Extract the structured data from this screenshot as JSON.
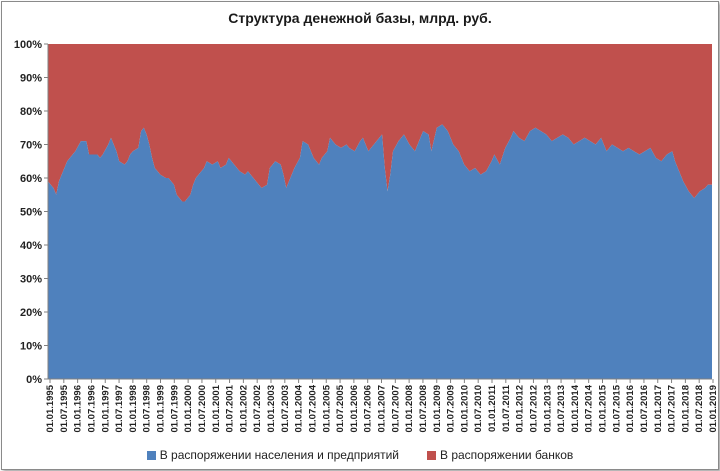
{
  "chart_data": {
    "type": "area",
    "stacked": "percent",
    "title": "Структура денежной базы, млрд. руб.",
    "xlabel": "",
    "ylabel": "",
    "ylim": [
      0,
      100
    ],
    "y_ticks": [
      "0%",
      "10%",
      "20%",
      "30%",
      "40%",
      "50%",
      "60%",
      "70%",
      "80%",
      "90%",
      "100%"
    ],
    "x_ticks": [
      "01.01.1995",
      "01.07.1995",
      "01.01.1996",
      "01.07.1996",
      "01.01.1997",
      "01.07.1997",
      "01.01.1998",
      "01.07.1998",
      "01.01.1999",
      "01.07.1999",
      "01.01.2000",
      "01.07.2000",
      "01.01.2001",
      "01.07.2001",
      "01.01.2002",
      "01.07.2002",
      "01.01.2003",
      "01.07.2003",
      "01.01.2004",
      "01.07.2004",
      "01.01.2005",
      "01.07.2005",
      "01.01.2006",
      "01.07.2006",
      "01.01.2007",
      "01.07.2007",
      "01.01.2008",
      "01.07.2008",
      "01.01.2009",
      "01.07.2009",
      "01.01.2010",
      "01.07.2010",
      "01.01.2011",
      "01.07.2011",
      "01.01.2012",
      "01.07.2012",
      "01.01.2013",
      "01.07.2013",
      "01.01.2014",
      "01.07.2014",
      "01.01.2015",
      "01.07.2015",
      "01.01.2016",
      "01.07.2016",
      "01.01.2017",
      "01.07.2017",
      "01.01.2018",
      "01.07.2018",
      "01.01.2019"
    ],
    "legend_position": "bottom",
    "grid": false,
    "x": [
      1995.0,
      1995.1,
      1995.2,
      1995.3,
      1995.4,
      1995.5,
      1995.6,
      1995.7,
      1995.8,
      1995.9,
      1996.0,
      1996.2,
      1996.4,
      1996.5,
      1996.6,
      1996.7,
      1996.8,
      1996.9,
      1997.0,
      1997.2,
      1997.3,
      1997.5,
      1997.6,
      1997.8,
      1997.9,
      1998.0,
      1998.1,
      1998.3,
      1998.4,
      1998.5,
      1998.6,
      1998.7,
      1998.8,
      1998.9,
      1999.0,
      1999.1,
      1999.3,
      1999.4,
      1999.6,
      1999.7,
      1999.8,
      1999.9,
      2000.0,
      2000.1,
      2000.2,
      2000.3,
      2000.4,
      2000.5,
      2000.7,
      2000.8,
      2001.0,
      2001.2,
      2001.3,
      2001.5,
      2001.6,
      2001.8,
      2002.0,
      2002.2,
      2002.3,
      2002.5,
      2002.7,
      2002.8,
      2003.0,
      2003.1,
      2003.3,
      2003.5,
      2003.6,
      2003.7,
      2003.8,
      2004.0,
      2004.2,
      2004.3,
      2004.5,
      2004.7,
      2004.9,
      2005.0,
      2005.2,
      2005.3,
      2005.5,
      2005.7,
      2005.9,
      2006.0,
      2006.2,
      2006.4,
      2006.5,
      2006.7,
      2006.9,
      2007.0,
      2007.2,
      2007.3,
      2007.4,
      2007.5,
      2007.6,
      2007.8,
      2008.0,
      2008.2,
      2008.4,
      2008.6,
      2008.7,
      2008.9,
      2009.0,
      2009.2,
      2009.4,
      2009.6,
      2009.8,
      2010.0,
      2010.2,
      2010.4,
      2010.6,
      2010.8,
      2011.0,
      2011.2,
      2011.3,
      2011.5,
      2011.7,
      2011.9,
      2012.0,
      2012.2,
      2012.4,
      2012.6,
      2012.8,
      2013.0,
      2013.2,
      2013.4,
      2013.6,
      2013.8,
      2014.0,
      2014.2,
      2014.4,
      2014.6,
      2014.8,
      2015.0,
      2015.2,
      2015.4,
      2015.6,
      2015.8,
      2016.0,
      2016.2,
      2016.4,
      2016.6,
      2016.8,
      2017.0,
      2017.2,
      2017.4,
      2017.6,
      2017.8,
      2017.9,
      2018.0,
      2018.2,
      2018.4,
      2018.5,
      2018.6,
      2018.8,
      2019.0,
      2019.1
    ],
    "series": [
      {
        "name": "В распоряжении населения и предприятий",
        "color": "#4f81bd",
        "values": [
          59,
          58,
          57,
          55,
          59,
          61,
          63,
          65,
          66,
          67,
          68,
          71,
          71,
          67,
          67,
          67,
          67,
          66,
          67,
          70,
          72,
          68,
          65,
          64,
          65,
          67,
          68,
          69,
          74,
          75,
          73,
          70,
          66,
          63,
          62,
          61,
          60,
          60,
          58,
          55,
          54,
          53,
          53,
          54,
          55,
          58,
          60,
          61,
          63,
          65,
          64,
          65,
          63,
          64,
          66,
          64,
          62,
          61,
          62,
          60,
          58,
          57,
          58,
          63,
          65,
          64,
          61,
          57,
          59,
          63,
          66,
          71,
          70,
          66,
          64,
          66,
          68,
          72,
          70,
          69,
          70,
          69,
          68,
          71,
          72,
          68,
          70,
          71,
          73,
          63,
          56,
          61,
          68,
          71,
          73,
          70,
          68,
          72,
          74,
          73,
          68,
          75,
          76,
          74,
          70,
          68,
          64,
          62,
          63,
          61,
          62,
          65,
          67,
          64,
          69,
          72,
          74,
          72,
          71,
          74,
          75,
          74,
          73,
          71,
          72,
          73,
          72,
          70,
          71,
          72,
          71,
          70,
          72,
          68,
          70,
          69,
          68,
          69,
          68,
          67,
          68,
          69,
          66,
          65,
          67,
          68,
          65,
          63,
          59,
          56,
          55,
          54,
          56,
          57,
          58
        ]
      },
      {
        "name": "В распоряжении банков",
        "color": "#c0504d",
        "values": [
          41,
          42,
          43,
          45,
          41,
          39,
          37,
          35,
          34,
          33,
          32,
          29,
          29,
          33,
          33,
          33,
          33,
          34,
          33,
          30,
          28,
          32,
          35,
          36,
          35,
          33,
          32,
          31,
          26,
          25,
          27,
          30,
          34,
          37,
          38,
          39,
          40,
          40,
          42,
          45,
          46,
          47,
          47,
          46,
          45,
          42,
          40,
          39,
          37,
          35,
          36,
          35,
          37,
          36,
          34,
          36,
          38,
          39,
          38,
          40,
          42,
          43,
          42,
          37,
          35,
          36,
          39,
          43,
          41,
          37,
          34,
          29,
          30,
          34,
          36,
          34,
          32,
          28,
          30,
          31,
          30,
          31,
          32,
          29,
          28,
          32,
          30,
          29,
          27,
          37,
          44,
          39,
          32,
          29,
          27,
          30,
          32,
          28,
          26,
          27,
          32,
          25,
          24,
          26,
          30,
          32,
          36,
          38,
          37,
          39,
          38,
          35,
          33,
          36,
          31,
          28,
          26,
          28,
          29,
          26,
          25,
          26,
          27,
          29,
          28,
          27,
          28,
          30,
          29,
          28,
          29,
          30,
          28,
          32,
          30,
          31,
          32,
          31,
          32,
          33,
          32,
          31,
          34,
          35,
          33,
          32,
          35,
          37,
          41,
          44,
          45,
          46,
          44,
          43,
          42
        ]
      }
    ]
  }
}
